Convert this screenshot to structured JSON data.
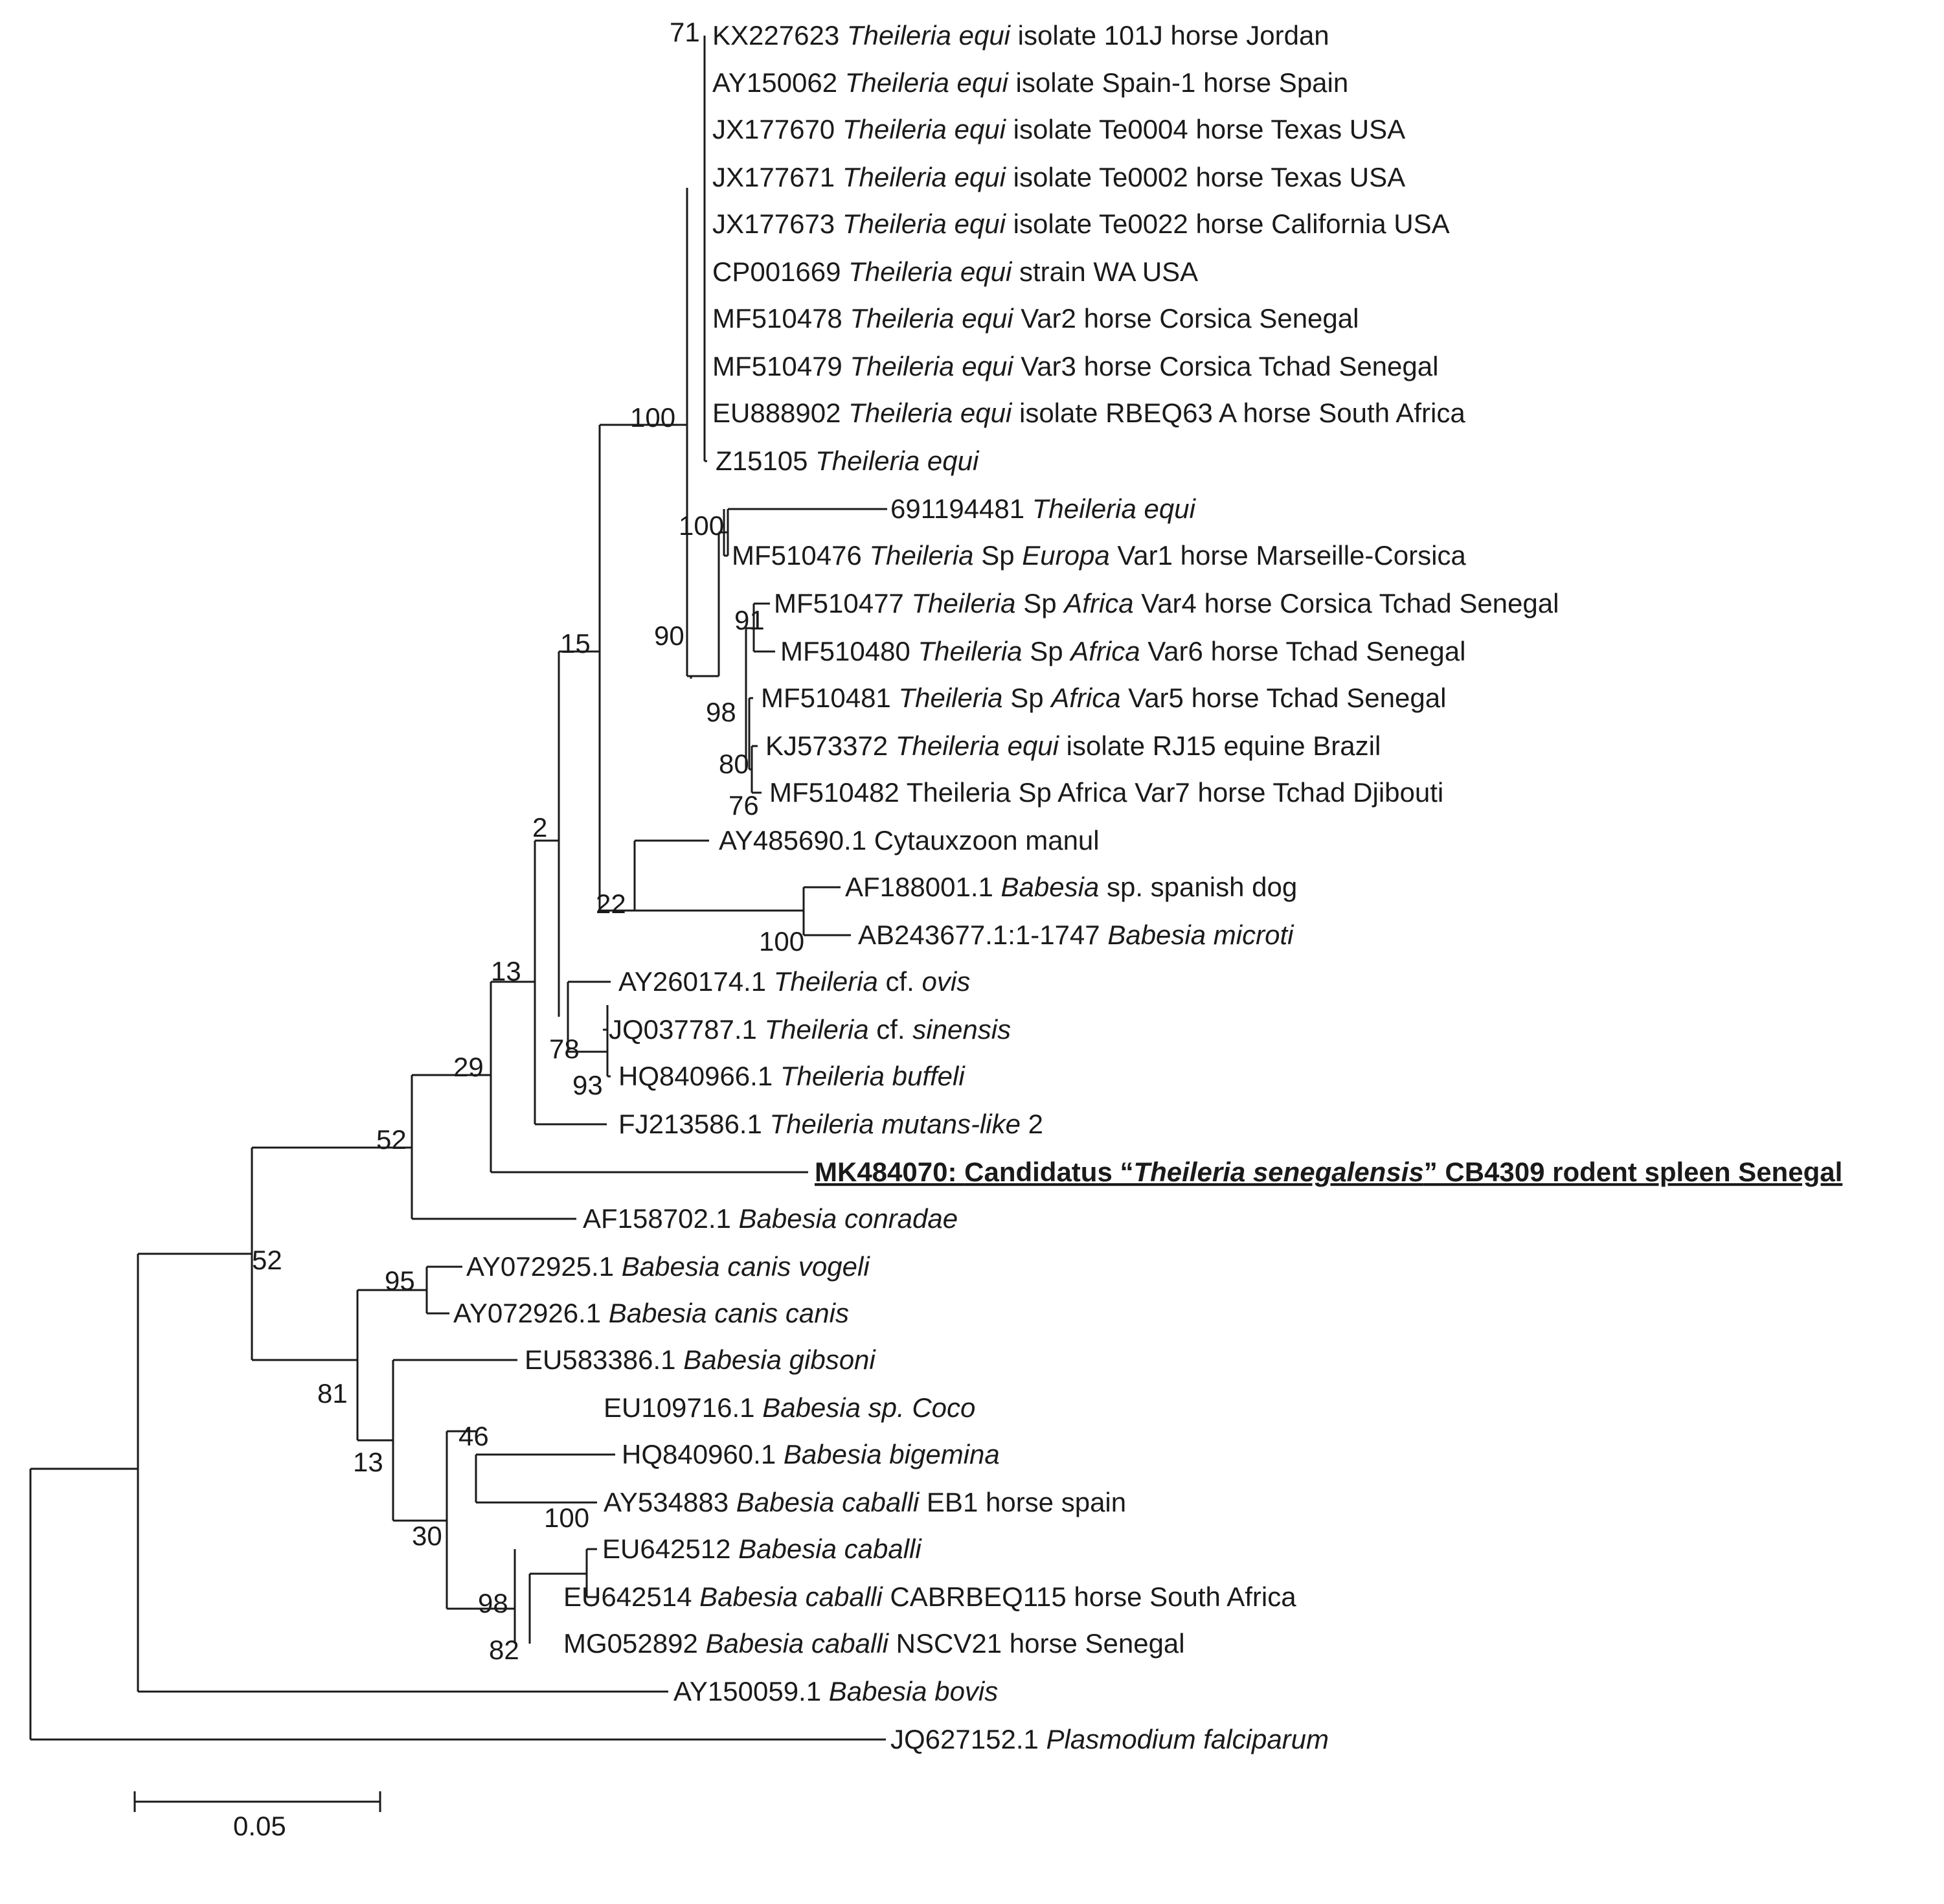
{
  "scale_bar": {
    "label": "0.05"
  },
  "leaves": [
    {
      "acc": "KX227623",
      "parts": [
        [
          "Theileria equi",
          1
        ],
        [
          " isolate 101J horse Jordan",
          0
        ]
      ]
    },
    {
      "acc": "AY150062",
      "parts": [
        [
          "Theileria equi",
          1
        ],
        [
          " isolate Spain-1 horse Spain",
          0
        ]
      ]
    },
    {
      "acc": "JX177670",
      "parts": [
        [
          "Theileria equi",
          1
        ],
        [
          " isolate Te0004 horse Texas USA",
          0
        ]
      ]
    },
    {
      "acc": "JX177671",
      "parts": [
        [
          "Theileria equi",
          1
        ],
        [
          " isolate Te0002 horse Texas USA",
          0
        ]
      ]
    },
    {
      "acc": "JX177673",
      "parts": [
        [
          "Theileria equi",
          1
        ],
        [
          " isolate Te0022 horse California USA",
          0
        ]
      ]
    },
    {
      "acc": "CP001669",
      "parts": [
        [
          "Theileria equi",
          1
        ],
        [
          " strain WA USA",
          0
        ]
      ]
    },
    {
      "acc": "MF510478",
      "parts": [
        [
          "Theileria equi",
          1
        ],
        [
          " Var2 horse Corsica Senegal",
          0
        ]
      ]
    },
    {
      "acc": "MF510479",
      "parts": [
        [
          "Theileria equi",
          1
        ],
        [
          " Var3 horse Corsica Tchad Senegal",
          0
        ]
      ]
    },
    {
      "acc": "EU888902",
      "parts": [
        [
          "Theileria equi",
          1
        ],
        [
          " isolate RBEQ63 A horse South Africa",
          0
        ]
      ]
    },
    {
      "acc": "Z15105",
      "parts": [
        [
          "Theileria equi",
          1
        ]
      ]
    },
    {
      "acc": "691194481",
      "parts": [
        [
          "Theileria equi",
          1
        ]
      ]
    },
    {
      "acc": "MF510476",
      "parts": [
        [
          "Theileria",
          1
        ],
        [
          " Sp ",
          0
        ],
        [
          "Europa",
          1
        ],
        [
          " Var1 horse Marseille-Corsica",
          0
        ]
      ]
    },
    {
      "acc": "MF510477",
      "parts": [
        [
          "Theileria",
          1
        ],
        [
          " Sp ",
          0
        ],
        [
          "Africa",
          1
        ],
        [
          " Var4 horse Corsica Tchad Senegal",
          0
        ]
      ]
    },
    {
      "acc": "MF510480",
      "parts": [
        [
          "Theileria",
          1
        ],
        [
          " Sp ",
          0
        ],
        [
          "Africa",
          1
        ],
        [
          " Var6 horse Tchad Senegal",
          0
        ]
      ]
    },
    {
      "acc": "MF510481",
      "parts": [
        [
          "Theileria",
          1
        ],
        [
          " Sp ",
          0
        ],
        [
          "Africa",
          1
        ],
        [
          " Var5 horse Tchad Senegal",
          0
        ]
      ]
    },
    {
      "acc": "KJ573372",
      "parts": [
        [
          "Theileria equi",
          1
        ],
        [
          " isolate RJ15 equine Brazil",
          0
        ]
      ]
    },
    {
      "acc": "MF510482",
      "parts": [
        [
          "Theileria Sp Africa Var7 horse Tchad Djibouti",
          0
        ]
      ]
    },
    {
      "acc": "AY485690.1",
      "parts": [
        [
          "Cytauxzoon manul",
          0
        ]
      ]
    },
    {
      "acc": "AF188001.1",
      "parts": [
        [
          "Babesia",
          1
        ],
        [
          " sp. spanish dog",
          0
        ]
      ]
    },
    {
      "acc": "AB243677.1:1-1747",
      "parts": [
        [
          "Babesia microti",
          1
        ]
      ]
    },
    {
      "acc": "AY260174.1",
      "parts": [
        [
          "Theileria",
          1
        ],
        [
          " cf. ",
          0
        ],
        [
          "ovis",
          1
        ]
      ]
    },
    {
      "acc": "JQ037787.1",
      "parts": [
        [
          "Theileria",
          1
        ],
        [
          " cf. ",
          0
        ],
        [
          "sinensis",
          1
        ]
      ]
    },
    {
      "acc": "HQ840966.1",
      "parts": [
        [
          "Theileria buffeli",
          1
        ]
      ]
    },
    {
      "acc": "FJ213586.1",
      "parts": [
        [
          "Theileria mutans-like",
          1
        ],
        [
          " 2",
          0
        ]
      ]
    },
    {
      "acc": "MK484070:",
      "parts": [
        [
          "Candidatus “",
          0
        ],
        [
          "Theileria senegalensis",
          1
        ],
        [
          "” CB4309 rodent spleen Senegal",
          0
        ]
      ],
      "emphasis": true
    },
    {
      "acc": "AF158702.1",
      "parts": [
        [
          "Babesia conradae",
          1
        ]
      ]
    },
    {
      "acc": "AY072925.1",
      "parts": [
        [
          "Babesia canis vogeli",
          1
        ]
      ]
    },
    {
      "acc": "AY072926.1",
      "parts": [
        [
          "Babesia canis canis",
          1
        ]
      ]
    },
    {
      "acc": "EU583386.1",
      "parts": [
        [
          "Babesia gibsoni",
          1
        ]
      ]
    },
    {
      "acc": "EU109716.1",
      "parts": [
        [
          "Babesia sp. Coco",
          1
        ]
      ]
    },
    {
      "acc": "HQ840960.1",
      "parts": [
        [
          "Babesia bigemina",
          1
        ]
      ]
    },
    {
      "acc": "AY534883",
      "parts": [
        [
          "Babesia caballi",
          1
        ],
        [
          " EB1 horse spain",
          0
        ]
      ]
    },
    {
      "acc": "EU642512",
      "parts": [
        [
          "Babesia caballi",
          1
        ]
      ]
    },
    {
      "acc": "EU642514",
      "parts": [
        [
          "Babesia caballi",
          1
        ],
        [
          " CABRBEQ115 horse South Africa",
          0
        ]
      ]
    },
    {
      "acc": "MG052892",
      "parts": [
        [
          "Babesia caballi",
          1
        ],
        [
          " NSCV21 horse Senegal",
          0
        ]
      ]
    },
    {
      "acc": "AY150059.1",
      "parts": [
        [
          "Babesia bovis",
          1
        ]
      ]
    },
    {
      "acc": "JQ627152.1",
      "parts": [
        [
          "Plasmodium falciparum",
          1
        ]
      ]
    }
  ],
  "bootstrap": [
    {
      "name": "bs-71",
      "value": "71"
    },
    {
      "name": "bs-100-equi",
      "value": "100"
    },
    {
      "name": "bs-100-var1",
      "value": "100"
    },
    {
      "name": "bs-90",
      "value": "90"
    },
    {
      "name": "bs-91",
      "value": "91"
    },
    {
      "name": "bs-98-africa",
      "value": "98"
    },
    {
      "name": "bs-80",
      "value": "80"
    },
    {
      "name": "bs-76",
      "value": "76"
    },
    {
      "name": "bs-15",
      "value": "15"
    },
    {
      "name": "bs-2",
      "value": "2"
    },
    {
      "name": "bs-22",
      "value": "22"
    },
    {
      "name": "bs-100-babesia",
      "value": "100"
    },
    {
      "name": "bs-13-theileria",
      "value": "13"
    },
    {
      "name": "bs-78",
      "value": "78"
    },
    {
      "name": "bs-93",
      "value": "93"
    },
    {
      "name": "bs-29",
      "value": "29"
    },
    {
      "name": "bs-52-inner",
      "value": "52"
    },
    {
      "name": "bs-52-outer",
      "value": "52"
    },
    {
      "name": "bs-95",
      "value": "95"
    },
    {
      "name": "bs-81",
      "value": "81"
    },
    {
      "name": "bs-13-babesia",
      "value": "13"
    },
    {
      "name": "bs-46",
      "value": "46"
    },
    {
      "name": "bs-30",
      "value": "30"
    },
    {
      "name": "bs-100-caballi",
      "value": "100"
    },
    {
      "name": "bs-98-caballi",
      "value": "98"
    },
    {
      "name": "bs-82",
      "value": "82"
    }
  ]
}
